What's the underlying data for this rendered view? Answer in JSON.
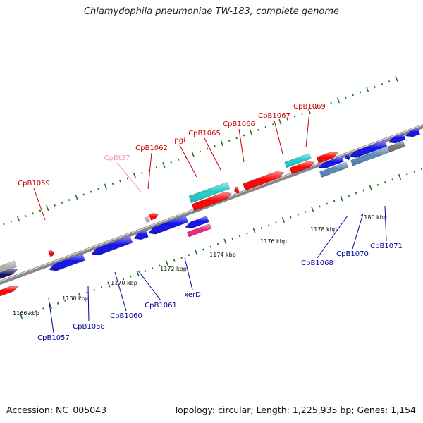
{
  "title": "Chlamydophila pneumoniae TW-183, complete genome",
  "footer": {
    "accession": "Accession: NC_005043",
    "stats": "Topology: circular; Length: 1,225,935 bp; Genes: 1,154"
  },
  "colors": {
    "forward_label": "#cc0000",
    "reverse_label": "#000099",
    "trna_label": "#ee99bb",
    "tick": "#1a7a1a",
    "backbone": "#888888",
    "cds_red": "#ff0000",
    "cds_blue": "#1111ee",
    "cds_cyan": "#22cccc",
    "cds_steel": "#5588bb",
    "cds_gray": "#777777",
    "cds_pink": "#ee2288",
    "cds_navy": "#111166"
  },
  "scale": [
    "1166 kbp",
    "1168 kbp",
    "1170 kbp",
    "1172 kbp",
    "1174 kbp",
    "1176 kbp",
    "1178 kbp",
    "1180 kbp"
  ],
  "forward_genes": [
    "CpB1059",
    "CpBt37",
    "CpB1062",
    "pgi",
    "CpB1065",
    "CpB1066",
    "CpB1067",
    "CpB1069"
  ],
  "reverse_genes": [
    "CpB1057",
    "CpB1058",
    "CpB1060",
    "CpB1061",
    "xerD",
    "CpB1068",
    "CpB1070",
    "CpB1071"
  ]
}
